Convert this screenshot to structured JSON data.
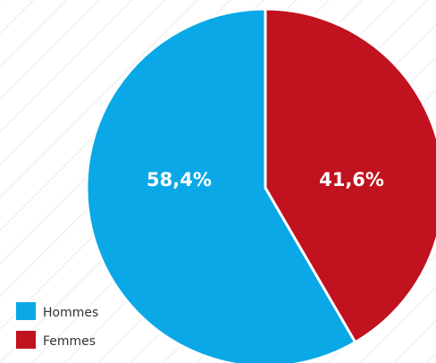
{
  "chart_data": {
    "type": "pie",
    "categories": [
      "Hommes",
      "Femmes"
    ],
    "values": [
      58.4,
      41.6
    ],
    "value_labels": [
      "58,4%",
      "41,6%"
    ],
    "colors": [
      "#0aa8e6",
      "#c1121f"
    ],
    "legend": "bottom-left"
  }
}
